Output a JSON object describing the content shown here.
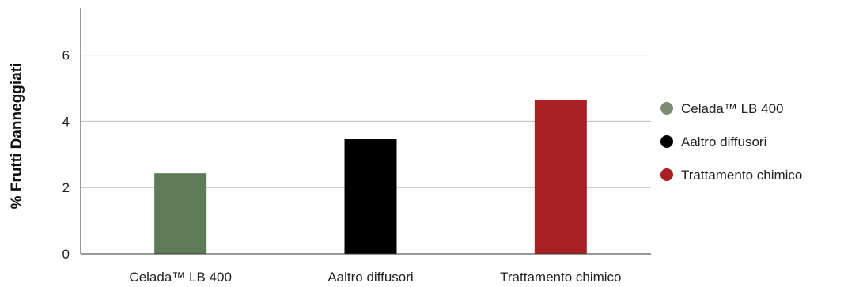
{
  "chart_data": {
    "type": "bar",
    "title": "",
    "xlabel": "",
    "ylabel": "% Frutti Danneggiati",
    "ylim": [
      0,
      7
    ],
    "yticks": [
      0,
      2,
      4,
      6
    ],
    "grid": true,
    "legend_position": "right",
    "categories": [
      "Celada™ LB 400",
      "Aaltro diffusori",
      "Trattamento chimico"
    ],
    "values": [
      2.43,
      3.46,
      4.65
    ],
    "colors": [
      "#5e7b57",
      "#000000",
      "#a82023"
    ],
    "legend": [
      {
        "label": "Celada™ LB 400",
        "color": "#7c8b72"
      },
      {
        "label": "Aaltro diffusori",
        "color": "#000000"
      },
      {
        "label": "Trattamento chimico",
        "color": "#a82023"
      }
    ]
  }
}
